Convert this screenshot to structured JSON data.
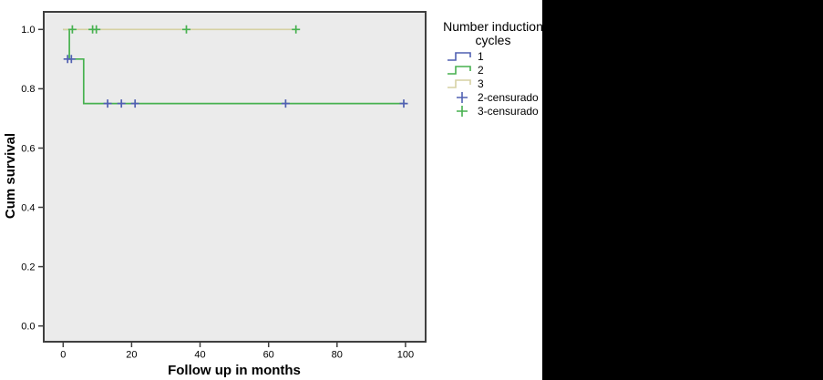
{
  "panels": {
    "right_fill_color": "#000000",
    "chart_background": "#ffffff",
    "plot_background": "#ebebeb",
    "plot_border_color": "#3f3f3f"
  },
  "legend": {
    "title_line1": "Number induction",
    "title_line2": "cycles",
    "items": [
      {
        "label": "1",
        "glyph": "step",
        "color": "#5060b2"
      },
      {
        "label": "2",
        "glyph": "step",
        "color": "#47b14f"
      },
      {
        "label": "3",
        "glyph": "step",
        "color": "#d6d1a3"
      },
      {
        "label": "2-censurado",
        "glyph": "plus",
        "color": "#5060b2"
      },
      {
        "label": "3-censurado",
        "glyph": "plus",
        "color": "#47b14f"
      }
    ]
  },
  "chart_data": {
    "type": "line",
    "subtype": "kaplan-meier-step",
    "title": "",
    "xlabel": "Follow up in months",
    "ylabel": "Cum survival",
    "xlim": [
      0,
      105
    ],
    "ylim": [
      0.0,
      1.0
    ],
    "x_ticks": [
      0,
      20,
      40,
      60,
      80,
      100
    ],
    "y_ticks": [
      "1.0",
      "0.8",
      "0.6",
      "0.4",
      "0.2",
      "0.0"
    ],
    "grid": false,
    "legend_position": "right",
    "series": [
      {
        "name": "1",
        "color": "#5060b2",
        "visible_in_plot": false,
        "note": "curve not visibly distinguishable in plot (overlapped near origin)",
        "points": []
      },
      {
        "name": "2",
        "color": "#47b14f",
        "visible_in_plot": true,
        "points": [
          [
            0,
            1.0
          ],
          [
            1.8,
            1.0
          ],
          [
            1.8,
            0.9
          ],
          [
            6,
            0.9
          ],
          [
            6,
            0.75
          ],
          [
            100,
            0.75
          ]
        ]
      },
      {
        "name": "3",
        "color": "#d6d1a3",
        "visible_in_plot": true,
        "points": [
          [
            0,
            1.0
          ],
          [
            68,
            1.0
          ]
        ]
      }
    ],
    "censored": [
      {
        "name": "2-censurado",
        "color": "#5060b2",
        "points": [
          [
            1.3,
            0.9
          ],
          [
            2.4,
            0.9
          ],
          [
            13,
            0.75
          ],
          [
            17,
            0.75
          ],
          [
            21,
            0.75
          ],
          [
            65,
            0.75
          ],
          [
            99.5,
            0.75
          ]
        ]
      },
      {
        "name": "3-censurado",
        "color": "#47b14f",
        "points": [
          [
            2.7,
            1.0
          ],
          [
            8.6,
            1.0
          ],
          [
            9.7,
            1.0
          ],
          [
            36,
            1.0
          ],
          [
            68,
            1.0
          ]
        ]
      }
    ]
  }
}
